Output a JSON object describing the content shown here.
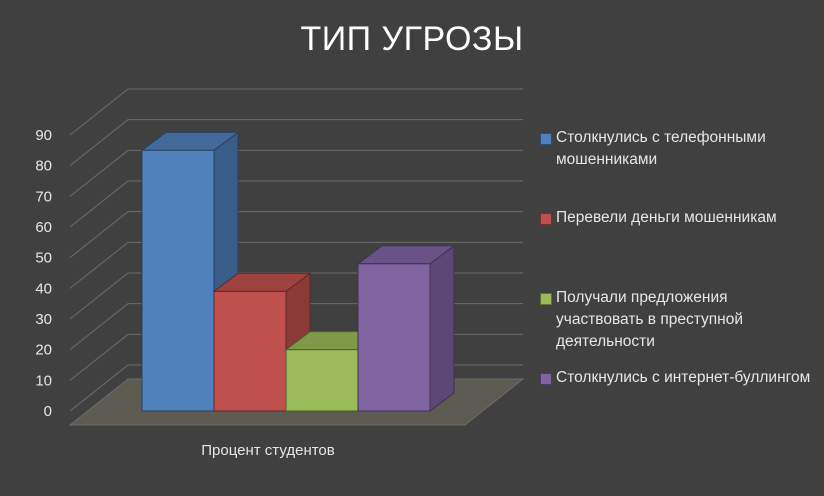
{
  "chart_data": {
    "type": "bar",
    "title": "ТИП УГРОЗЫ",
    "categories": [
      "Процент студентов"
    ],
    "series": [
      {
        "name": "Столкнулись с телефонными мошенниками",
        "values": [
          85
        ],
        "color": "#4f81bd"
      },
      {
        "name": "Перевели деньги мошенникам",
        "values": [
          39
        ],
        "color": "#c0504d"
      },
      {
        "name": "Получали предложения участвовать в преступной деятельности",
        "values": [
          20
        ],
        "color": "#9bbb59"
      },
      {
        "name": "Столкнулись с интернет-буллингом",
        "values": [
          48
        ],
        "color": "#8064a2"
      }
    ],
    "ylim": [
      0,
      90
    ],
    "yticks": [
      "0",
      "10",
      "20",
      "30",
      "40",
      "50",
      "60",
      "70",
      "80",
      "90"
    ],
    "grid": true,
    "legend": "right",
    "style": "3d-clustered-column",
    "background": "#404040"
  }
}
